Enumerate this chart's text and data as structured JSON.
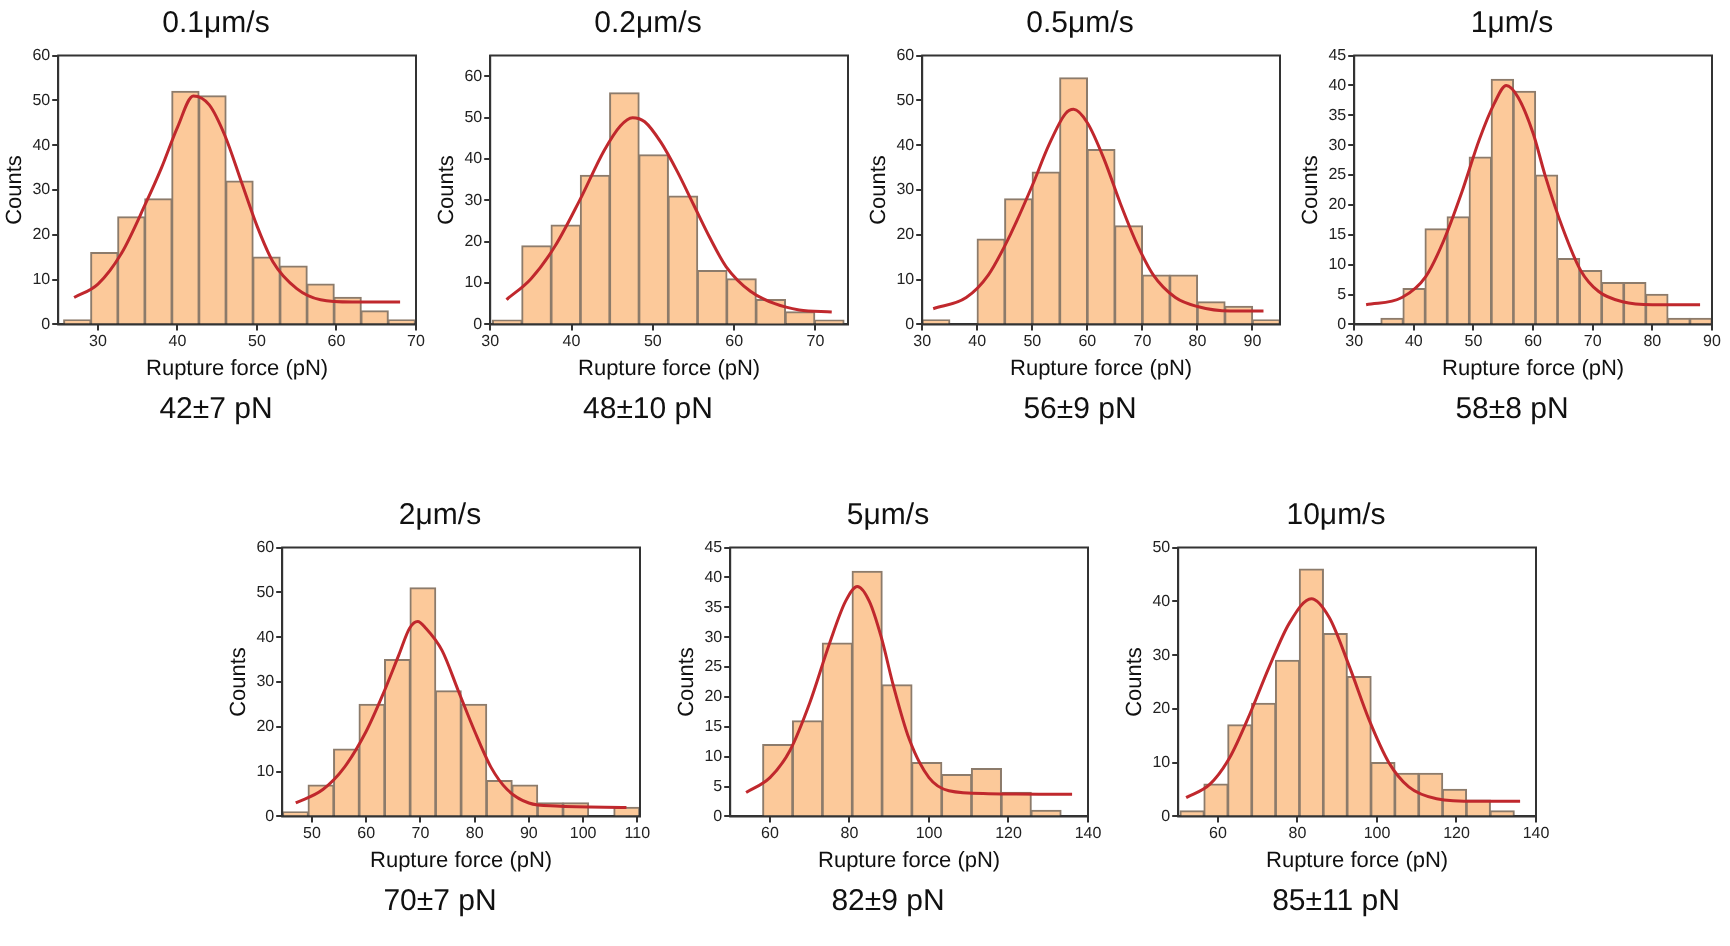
{
  "chart_data": [
    {
      "type": "histogram",
      "title": "0.1μm/s",
      "xlabel": "Rupture force (pN)",
      "ylabel": "Counts",
      "annotations": [
        "42±7 pN"
      ],
      "color": "#fcc99a",
      "bins": [
        25.7,
        29.1,
        32.5,
        35.9,
        39.3,
        42.7,
        46.1,
        49.5,
        52.9,
        56.3,
        59.7,
        63.1,
        66.5,
        69.9
      ],
      "values": [
        1,
        16,
        24,
        28,
        52,
        51,
        32,
        15,
        13,
        9,
        6,
        3,
        1
      ],
      "series": [
        {
          "type": "line",
          "color": "#c0282d",
          "x": [
            27,
            30,
            33,
            36,
            38,
            40,
            42,
            44,
            46,
            48,
            50,
            52,
            55,
            58,
            62,
            68
          ],
          "values": [
            6,
            9,
            16,
            27,
            35,
            44,
            51,
            49,
            42,
            32,
            22,
            14,
            8,
            5.5,
            5,
            5
          ]
        }
      ],
      "xlim": [
        25,
        70
      ],
      "xticks": [
        30,
        40,
        50,
        60,
        70
      ],
      "ylim": [
        0,
        60
      ],
      "yticks": [
        0,
        10,
        20,
        30,
        40,
        50,
        60
      ]
    },
    {
      "type": "histogram",
      "title": "0.2μm/s",
      "xlabel": "Rupture force (pN)",
      "ylabel": "Counts",
      "annotations": [
        "48±10 pN"
      ],
      "color": "#fcc99a",
      "bins": [
        30.3,
        33.9,
        37.5,
        41.1,
        44.7,
        48.3,
        51.9,
        55.5,
        59.1,
        62.7,
        66.3,
        69.9,
        73.5
      ],
      "values": [
        1,
        19,
        24,
        36,
        56,
        41,
        31,
        13,
        11,
        6,
        3,
        1
      ],
      "series": [
        {
          "type": "line",
          "color": "#c0282d",
          "x": [
            32,
            35,
            38,
            41,
            44,
            46,
            47.5,
            49,
            51,
            53,
            55,
            57,
            59,
            62,
            65,
            68,
            72
          ],
          "values": [
            6,
            11,
            19,
            30,
            42,
            48,
            50,
            49,
            44,
            37,
            29,
            21,
            14,
            8,
            5,
            3.5,
            3
          ]
        }
      ],
      "xlim": [
        30,
        74
      ],
      "xticks": [
        30,
        40,
        50,
        60,
        70
      ],
      "ylim": [
        0,
        65
      ],
      "yticks": [
        0,
        10,
        20,
        30,
        40,
        50,
        60
      ]
    },
    {
      "type": "histogram",
      "title": "0.5μm/s",
      "xlabel": "Rupture force (pN)",
      "ylabel": "Counts",
      "annotations": [
        "56±9 pN"
      ],
      "color": "#fcc99a",
      "bins": [
        30,
        35,
        40,
        45,
        50,
        55,
        60,
        65,
        70,
        75,
        80,
        85,
        90,
        95
      ],
      "values": [
        1,
        0,
        19,
        28,
        34,
        55,
        39,
        22,
        11,
        11,
        5,
        4,
        1
      ],
      "series": [
        {
          "type": "line",
          "color": "#c0282d",
          "x": [
            32,
            38,
            42,
            46,
            50,
            53,
            56,
            57.5,
            60,
            63,
            66,
            69,
            72,
            76,
            80,
            86,
            92
          ],
          "values": [
            3.5,
            6,
            11,
            20,
            31,
            40,
            47,
            48,
            45,
            37,
            27,
            18,
            11,
            6,
            4,
            3,
            3
          ]
        }
      ],
      "xlim": [
        30,
        95
      ],
      "xticks": [
        30,
        40,
        50,
        60,
        70,
        80,
        90
      ],
      "ylim": [
        0,
        60
      ],
      "yticks": [
        0,
        10,
        20,
        30,
        40,
        50,
        60
      ]
    },
    {
      "type": "histogram",
      "title": "1μm/s",
      "xlabel": "Rupture force (pN)",
      "ylabel": "Counts",
      "annotations": [
        "58±8 pN"
      ],
      "color": "#fcc99a",
      "bins": [
        34.5,
        38.2,
        41.9,
        45.6,
        49.3,
        53,
        56.7,
        60.4,
        64.1,
        67.8,
        71.5,
        75.2,
        78.9,
        82.6,
        86.3,
        90
      ],
      "values": [
        1,
        6,
        16,
        18,
        28,
        41,
        39,
        25,
        11,
        9,
        7,
        7,
        5,
        1,
        1
      ],
      "series": [
        {
          "type": "line",
          "color": "#c0282d",
          "x": [
            32,
            38,
            42,
            45,
            48,
            51,
            53.5,
            55.5,
            57.5,
            60,
            62,
            65,
            68,
            71,
            75,
            80,
            88
          ],
          "values": [
            3.3,
            4.5,
            8,
            14,
            22,
            31,
            37,
            40,
            38,
            32,
            25,
            16,
            9,
            5.5,
            3.8,
            3.3,
            3.3
          ]
        }
      ],
      "xlim": [
        30,
        90
      ],
      "xticks": [
        30,
        40,
        50,
        60,
        70,
        80,
        90
      ],
      "ylim": [
        0,
        45
      ],
      "yticks": [
        0,
        5,
        10,
        15,
        20,
        25,
        30,
        35,
        40,
        45
      ]
    },
    {
      "type": "histogram",
      "title": "2μm/s",
      "xlabel": "Rupture force (pN)",
      "ylabel": "Counts",
      "annotations": [
        "70±7 pN"
      ],
      "color": "#fcc99a",
      "bins": [
        44.6,
        49.3,
        54,
        58.7,
        63.4,
        68.1,
        72.8,
        77.5,
        82.2,
        86.9,
        91.6,
        96.3,
        101,
        105.7,
        110.4
      ],
      "values": [
        1,
        7,
        15,
        25,
        35,
        51,
        28,
        25,
        8,
        7,
        3,
        3,
        0,
        2
      ],
      "series": [
        {
          "type": "line",
          "color": "#c0282d",
          "x": [
            47,
            52,
            56,
            60,
            63,
            66,
            68,
            69.5,
            71,
            74,
            77,
            80,
            83,
            86,
            90,
            95,
            108
          ],
          "values": [
            3,
            6,
            11,
            19,
            27,
            36,
            42,
            43.5,
            42,
            37,
            28,
            19,
            11,
            6,
            3,
            2.3,
            2
          ]
        }
      ],
      "xlim": [
        44.5,
        110.5
      ],
      "xticks": [
        50,
        60,
        70,
        80,
        90,
        100,
        110
      ],
      "ylim": [
        0,
        60
      ],
      "yticks": [
        0,
        10,
        20,
        30,
        40,
        50,
        60
      ]
    },
    {
      "type": "histogram",
      "title": "5μm/s",
      "xlabel": "Rupture force (pN)",
      "ylabel": "Counts",
      "annotations": [
        "82±9 pN"
      ],
      "color": "#fcc99a",
      "bins": [
        58.2,
        65.7,
        73.2,
        80.7,
        88.2,
        95.7,
        103.2,
        110.7,
        118.2,
        125.7,
        133.2
      ],
      "values": [
        12,
        16,
        29,
        41,
        22,
        9,
        7,
        8,
        4,
        1
      ],
      "series": [
        {
          "type": "line",
          "color": "#c0282d",
          "x": [
            54,
            60,
            65,
            70,
            75,
            79,
            82,
            85,
            88,
            91,
            95,
            100,
            105,
            115,
            136
          ],
          "values": [
            4,
            6.5,
            11,
            19,
            29,
            36,
            38.5,
            36,
            30,
            22,
            13,
            6.5,
            4.3,
            3.8,
            3.7
          ]
        }
      ],
      "xlim": [
        50,
        140
      ],
      "xticks": [
        60,
        80,
        100,
        120,
        140
      ],
      "ylim": [
        0,
        45
      ],
      "yticks": [
        0,
        5,
        10,
        15,
        20,
        25,
        30,
        35,
        40,
        45
      ]
    },
    {
      "type": "histogram",
      "title": "10μm/s",
      "xlabel": "Rupture force (pN)",
      "ylabel": "Counts",
      "annotations": [
        "85±11 pN"
      ],
      "color": "#fcc99a",
      "bins": [
        50.5,
        56.5,
        62.5,
        68.5,
        74.5,
        80.5,
        86.5,
        92.5,
        98.5,
        104.5,
        110.5,
        116.5,
        122.5,
        128.5,
        134.5
      ],
      "values": [
        1,
        6,
        17,
        21,
        29,
        46,
        34,
        26,
        10,
        8,
        8,
        5,
        3,
        1
      ],
      "series": [
        {
          "type": "line",
          "color": "#c0282d",
          "x": [
            52,
            58,
            63,
            68,
            73,
            78,
            83.5,
            88,
            93,
            98,
            103,
            108,
            115,
            125,
            136
          ],
          "values": [
            3.5,
            6,
            11,
            19,
            28,
            36,
            40.5,
            37,
            28,
            18,
            10,
            5.5,
            3.3,
            2.8,
            2.8
          ]
        }
      ],
      "xlim": [
        50,
        140
      ],
      "xticks": [
        60,
        80,
        100,
        120,
        140
      ],
      "ylim": [
        0,
        50
      ],
      "yticks": [
        0,
        10,
        20,
        30,
        40,
        50
      ]
    }
  ]
}
